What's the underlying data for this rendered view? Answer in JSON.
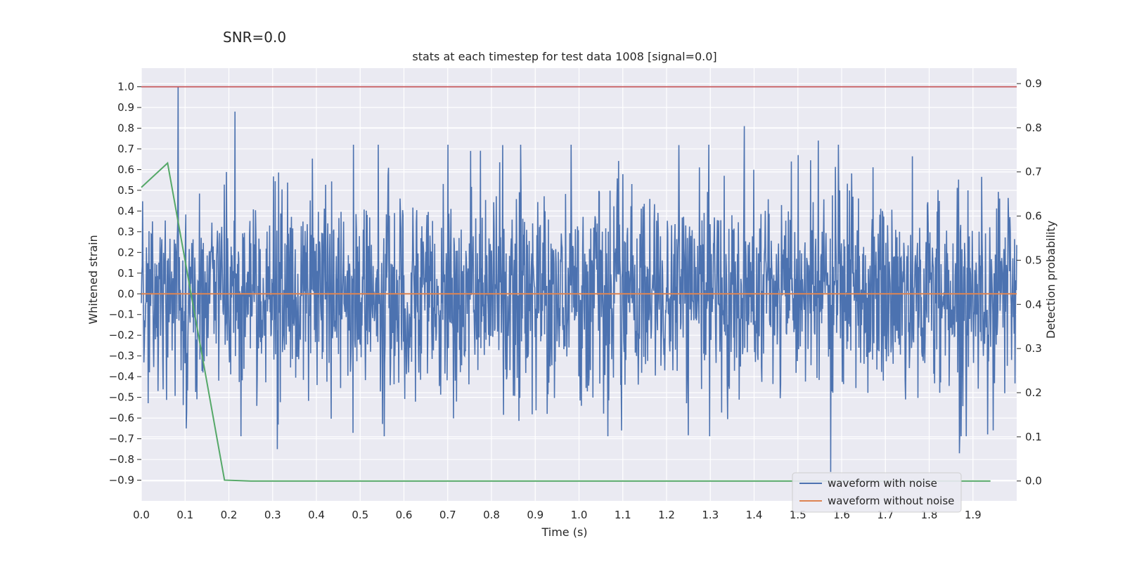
{
  "chart_data": {
    "type": "line",
    "suptitle": "SNR=0.0",
    "title": "stats at each timestep for test data 1008 [signal=0.0]",
    "xlabel": "Time (s)",
    "ylabel": "Whitened strain",
    "ylabel_right": "Detection probability",
    "xlim": [
      0.0,
      2.0
    ],
    "ylim": [
      -1.0,
      1.09
    ],
    "ylim_right": [
      -0.045,
      0.935
    ],
    "x_ticks": [
      0.0,
      0.1,
      0.2,
      0.3,
      0.4,
      0.5,
      0.6,
      0.7,
      0.8,
      0.9,
      1.0,
      1.1,
      1.2,
      1.3,
      1.4,
      1.5,
      1.6,
      1.7,
      1.8,
      1.9
    ],
    "x_tick_labels": [
      "0.0",
      "0.1",
      "0.2",
      "0.3",
      "0.4",
      "0.5",
      "0.6",
      "0.7",
      "0.8",
      "0.9",
      "1.0",
      "1.1",
      "1.2",
      "1.3",
      "1.4",
      "1.5",
      "1.6",
      "1.7",
      "1.8",
      "1.9"
    ],
    "y_ticks": [
      1.0,
      0.9,
      0.8,
      0.7,
      0.6,
      0.5,
      0.4,
      0.3,
      0.2,
      0.1,
      0.0,
      -0.1,
      -0.2,
      -0.3,
      -0.4,
      -0.5,
      -0.6,
      -0.7,
      -0.8,
      -0.9
    ],
    "y_tick_labels": [
      "1.0",
      "0.9",
      "0.8",
      "0.7",
      "0.6",
      "0.5",
      "0.4",
      "0.3",
      "0.2",
      "0.1",
      "0.0",
      "−0.1",
      "−0.2",
      "−0.3",
      "−0.4",
      "−0.5",
      "−0.6",
      "−0.7",
      "−0.8",
      "−0.9"
    ],
    "y_right_ticks": [
      0.9,
      0.8,
      0.7,
      0.6,
      0.5,
      0.4,
      0.3,
      0.2,
      0.1,
      0.0
    ],
    "y_right_tick_labels": [
      "0.9",
      "0.8",
      "0.7",
      "0.6",
      "0.5",
      "0.4",
      "0.3",
      "0.2",
      "0.1",
      "0.0"
    ],
    "series": [
      {
        "name": "waveform with noise",
        "color": "#4c72b0",
        "kind": "noise",
        "n_samples": 2048,
        "approx_std": 0.24,
        "min": -0.86,
        "max": 1.0,
        "peaks": [
          {
            "x": 0.084,
            "y": 1.0
          },
          {
            "x": 0.214,
            "y": 0.88
          },
          {
            "x": 0.485,
            "y": 0.72
          },
          {
            "x": 0.752,
            "y": 0.69
          },
          {
            "x": 1.378,
            "y": 0.81
          },
          {
            "x": 1.547,
            "y": 0.74
          },
          {
            "x": 1.593,
            "y": 0.72
          },
          {
            "x": 0.311,
            "y": -0.75
          },
          {
            "x": 1.575,
            "y": -0.86
          },
          {
            "x": 1.869,
            "y": -0.77
          },
          {
            "x": 1.097,
            "y": -0.66
          },
          {
            "x": 0.103,
            "y": -0.65
          }
        ]
      },
      {
        "name": "waveform without noise",
        "color": "#dd8452",
        "x": [
          0.0,
          2.0
        ],
        "y": [
          0.0,
          0.0
        ]
      },
      {
        "name": "detection probability",
        "color": "#55a868",
        "axis": "right",
        "x": [
          0.0,
          0.06,
          0.19,
          0.25,
          1.94
        ],
        "y": [
          0.665,
          0.72,
          0.002,
          0.0,
          0.0
        ]
      },
      {
        "name": "threshold",
        "color": "#c44e52",
        "x": [
          0.0,
          2.0
        ],
        "y": [
          1.0,
          1.0
        ]
      }
    ],
    "legend": {
      "placement": "lower-right",
      "entries": [
        {
          "label": "waveform with noise",
          "color": "#4c72b0"
        },
        {
          "label": "waveform without noise",
          "color": "#dd8452"
        }
      ]
    },
    "grid": true,
    "background": "#eaeaf2"
  }
}
